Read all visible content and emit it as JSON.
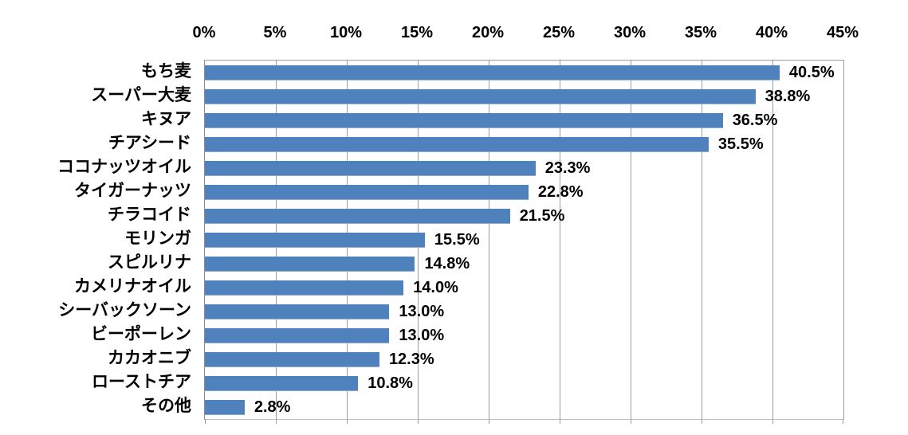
{
  "chart_data": {
    "type": "bar",
    "orientation": "horizontal",
    "title": "",
    "xlabel": "",
    "ylabel": "",
    "x_axis": {
      "min": 0,
      "max": 45,
      "tick_step": 5,
      "tick_labels": [
        "0%",
        "5%",
        "10%",
        "15%",
        "20%",
        "25%",
        "30%",
        "35%",
        "40%",
        "45%"
      ],
      "labels_position": "top",
      "unit": "%"
    },
    "grid": true,
    "legend": false,
    "categories": [
      "もち麦",
      "スーパー大麦",
      "キヌア",
      "チアシード",
      "ココナッツオイル",
      "タイガーナッツ",
      "チラコイド",
      "モリンガ",
      "スピルリナ",
      "カメリナオイル",
      "シーバックソーン",
      "ビーポーレン",
      "カカオニブ",
      "ローストチア",
      "その他"
    ],
    "values": [
      40.5,
      38.8,
      36.5,
      35.5,
      23.3,
      22.8,
      21.5,
      15.5,
      14.8,
      14.0,
      13.0,
      13.0,
      12.3,
      10.8,
      2.8
    ],
    "value_labels": [
      "40.5%",
      "38.8%",
      "36.5%",
      "35.5%",
      "23.3%",
      "22.8%",
      "21.5%",
      "15.5%",
      "14.8%",
      "14.0%",
      "13.0%",
      "13.0%",
      "12.3%",
      "10.8%",
      "2.8%"
    ]
  },
  "colors": {
    "bar": "#4F81BD",
    "gridline": "#9d9d9d",
    "axis_line": "#8c8c8c",
    "text": "#000000",
    "background": "#ffffff"
  }
}
